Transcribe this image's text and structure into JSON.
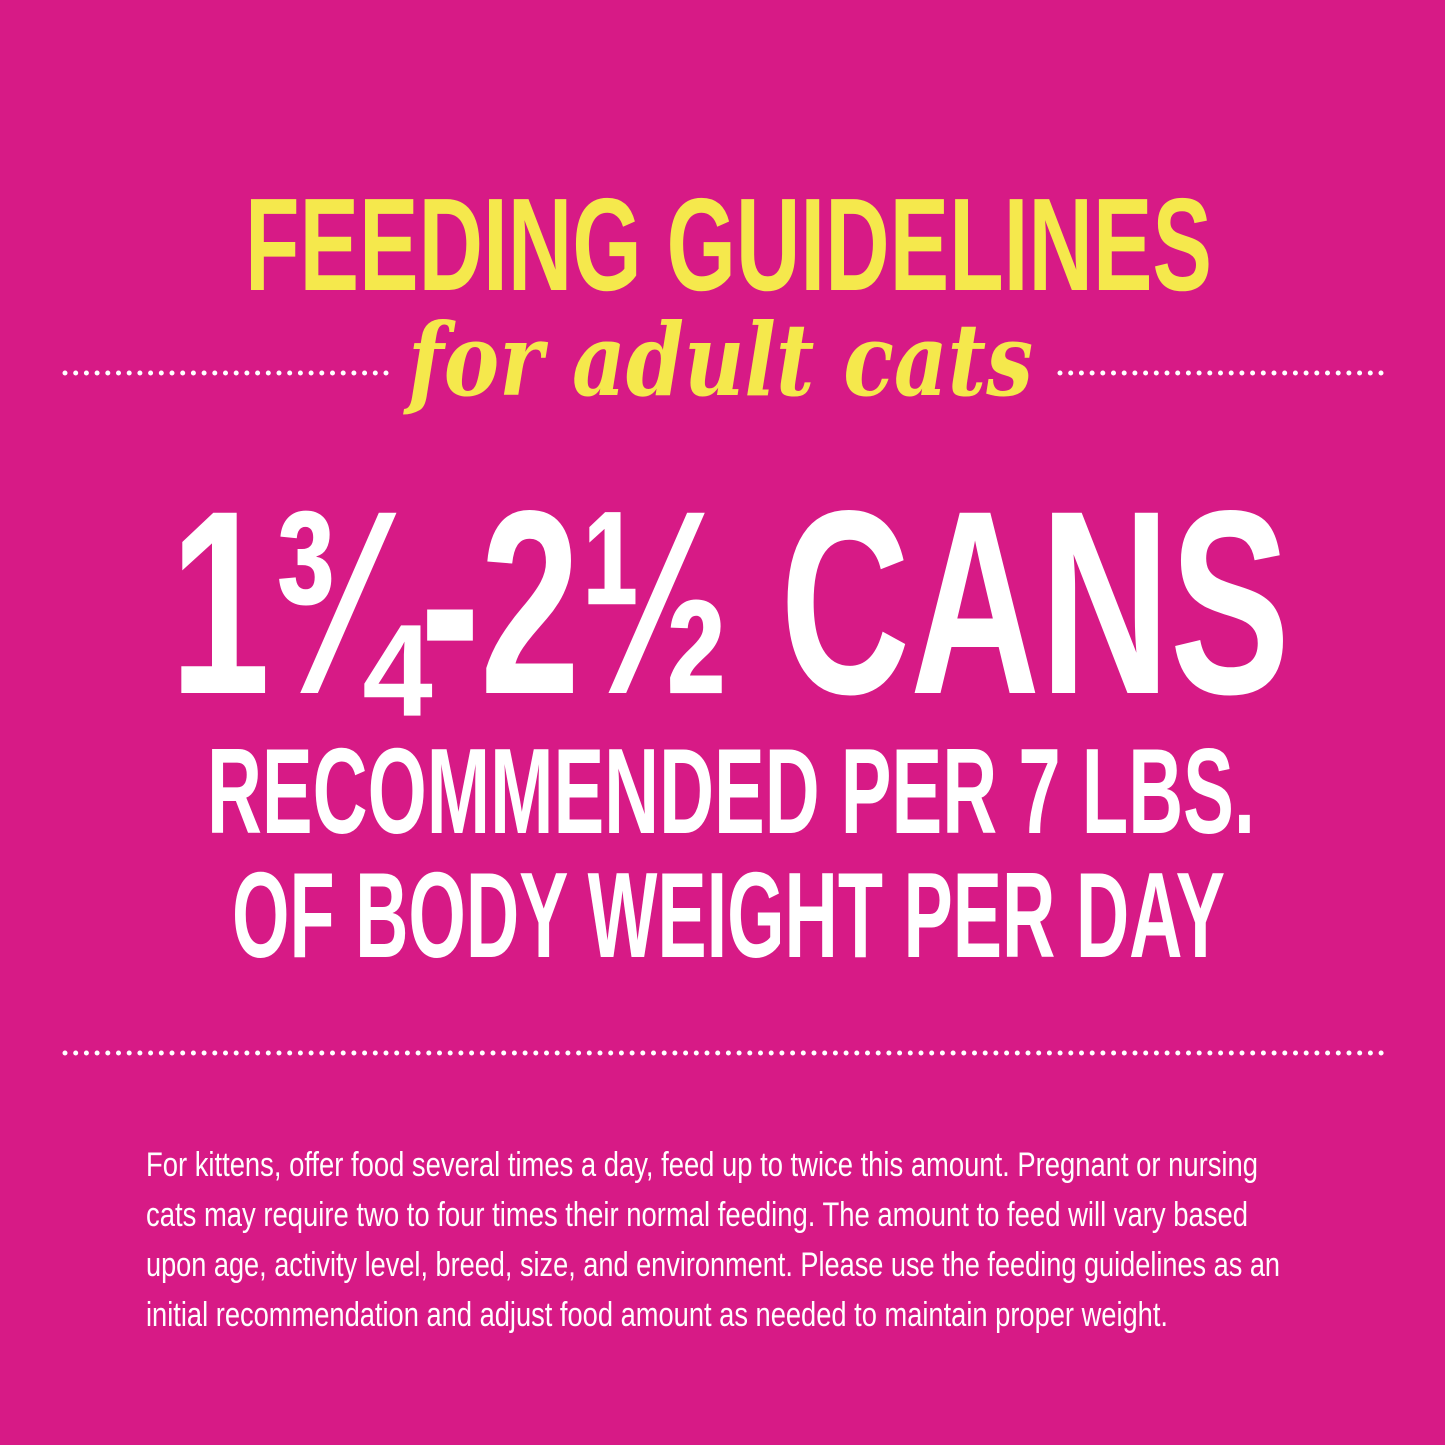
{
  "colors": {
    "background": "#d71a86",
    "accent_yellow": "#f5e84c",
    "text_white": "#ffffff"
  },
  "header": {
    "title": "FEEDING GUIDELINES",
    "subtitle": "for adult cats"
  },
  "main": {
    "amount": "1¾-2½ CANS",
    "line1": "RECOMMENDED PER 7 LBS.",
    "line2": "OF BODY WEIGHT PER DAY"
  },
  "footer": {
    "lines": [
      "For kittens, offer food several times a day, feed up to twice this amount. Pregnant or nursing",
      "cats may require two to four times their normal feeding. The amount to feed will vary based",
      "upon age, activity level, breed, size, and environment.  Please use the feeding guidelines as an",
      "initial recommendation and adjust food amount as needed to maintain proper weight."
    ]
  }
}
